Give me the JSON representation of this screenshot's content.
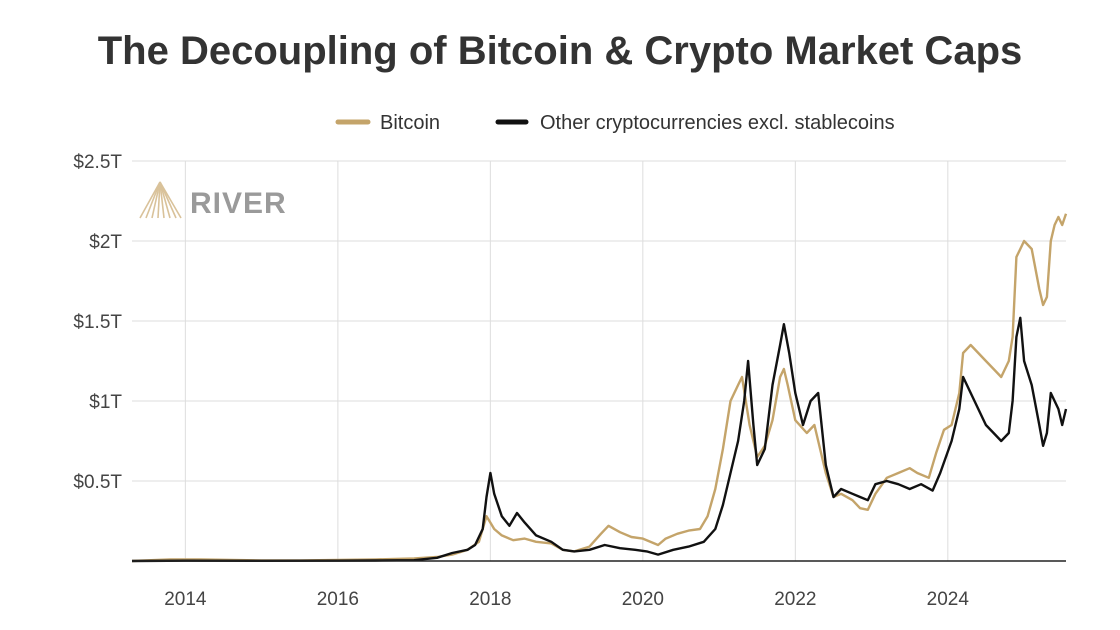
{
  "chart_data": {
    "type": "line",
    "title": "The Decoupling of Bitcoin & Crypto Market Caps",
    "xlabel": "",
    "ylabel": "",
    "xlim": [
      2013.3,
      2025.55
    ],
    "ylim": [
      0,
      2.5
    ],
    "x_ticks": [
      2014,
      2016,
      2018,
      2020,
      2022,
      2024
    ],
    "x_tick_labels": [
      "2014",
      "2016",
      "2018",
      "2020",
      "2022",
      "2024"
    ],
    "y_ticks": [
      0.5,
      1,
      1.5,
      2,
      2.5
    ],
    "y_tick_labels": [
      "$0.5T",
      "$1T",
      "$1.5T",
      "$2T",
      "$2.5T"
    ],
    "grid": true,
    "legend_position": "top",
    "watermark": "RIVER",
    "series": [
      {
        "name": "Bitcoin",
        "color": "#c4a46a",
        "points": [
          [
            2013.3,
            0.0
          ],
          [
            2013.8,
            0.01
          ],
          [
            2014.2,
            0.01
          ],
          [
            2014.6,
            0.007
          ],
          [
            2015.0,
            0.004
          ],
          [
            2015.5,
            0.003
          ],
          [
            2016.0,
            0.006
          ],
          [
            2016.5,
            0.01
          ],
          [
            2017.0,
            0.016
          ],
          [
            2017.3,
            0.025
          ],
          [
            2017.5,
            0.04
          ],
          [
            2017.7,
            0.07
          ],
          [
            2017.85,
            0.12
          ],
          [
            2017.95,
            0.28
          ],
          [
            2018.0,
            0.24
          ],
          [
            2018.05,
            0.2
          ],
          [
            2018.15,
            0.16
          ],
          [
            2018.3,
            0.13
          ],
          [
            2018.45,
            0.14
          ],
          [
            2018.6,
            0.12
          ],
          [
            2018.8,
            0.11
          ],
          [
            2018.95,
            0.07
          ],
          [
            2019.1,
            0.06
          ],
          [
            2019.3,
            0.09
          ],
          [
            2019.45,
            0.17
          ],
          [
            2019.55,
            0.22
          ],
          [
            2019.7,
            0.18
          ],
          [
            2019.85,
            0.15
          ],
          [
            2020.0,
            0.14
          ],
          [
            2020.2,
            0.1
          ],
          [
            2020.3,
            0.14
          ],
          [
            2020.45,
            0.17
          ],
          [
            2020.6,
            0.19
          ],
          [
            2020.75,
            0.2
          ],
          [
            2020.85,
            0.28
          ],
          [
            2020.95,
            0.45
          ],
          [
            2021.05,
            0.7
          ],
          [
            2021.15,
            1.0
          ],
          [
            2021.25,
            1.1
          ],
          [
            2021.3,
            1.15
          ],
          [
            2021.4,
            0.85
          ],
          [
            2021.5,
            0.65
          ],
          [
            2021.6,
            0.72
          ],
          [
            2021.7,
            0.88
          ],
          [
            2021.8,
            1.15
          ],
          [
            2021.85,
            1.2
          ],
          [
            2021.9,
            1.1
          ],
          [
            2022.0,
            0.88
          ],
          [
            2022.15,
            0.8
          ],
          [
            2022.25,
            0.85
          ],
          [
            2022.4,
            0.55
          ],
          [
            2022.5,
            0.4
          ],
          [
            2022.6,
            0.42
          ],
          [
            2022.75,
            0.38
          ],
          [
            2022.85,
            0.33
          ],
          [
            2022.95,
            0.32
          ],
          [
            2023.05,
            0.42
          ],
          [
            2023.2,
            0.52
          ],
          [
            2023.35,
            0.55
          ],
          [
            2023.5,
            0.58
          ],
          [
            2023.6,
            0.55
          ],
          [
            2023.75,
            0.52
          ],
          [
            2023.85,
            0.68
          ],
          [
            2023.95,
            0.82
          ],
          [
            2024.05,
            0.85
          ],
          [
            2024.15,
            1.05
          ],
          [
            2024.2,
            1.3
          ],
          [
            2024.3,
            1.35
          ],
          [
            2024.4,
            1.3
          ],
          [
            2024.5,
            1.25
          ],
          [
            2024.6,
            1.2
          ],
          [
            2024.7,
            1.15
          ],
          [
            2024.8,
            1.25
          ],
          [
            2024.85,
            1.4
          ],
          [
            2024.9,
            1.9
          ],
          [
            2024.95,
            1.95
          ],
          [
            2025.0,
            2.0
          ],
          [
            2025.1,
            1.95
          ],
          [
            2025.2,
            1.7
          ],
          [
            2025.25,
            1.6
          ],
          [
            2025.3,
            1.65
          ],
          [
            2025.35,
            2.0
          ],
          [
            2025.4,
            2.1
          ],
          [
            2025.45,
            2.15
          ],
          [
            2025.5,
            2.1
          ],
          [
            2025.55,
            2.17
          ]
        ]
      },
      {
        "name": "Other cryptocurrencies excl. stablecoins",
        "color": "#111111",
        "points": [
          [
            2013.3,
            0.0
          ],
          [
            2014.0,
            0.002
          ],
          [
            2015.0,
            0.001
          ],
          [
            2016.0,
            0.002
          ],
          [
            2016.5,
            0.003
          ],
          [
            2017.0,
            0.005
          ],
          [
            2017.3,
            0.02
          ],
          [
            2017.5,
            0.05
          ],
          [
            2017.7,
            0.07
          ],
          [
            2017.8,
            0.1
          ],
          [
            2017.9,
            0.2
          ],
          [
            2017.95,
            0.4
          ],
          [
            2018.0,
            0.55
          ],
          [
            2018.05,
            0.42
          ],
          [
            2018.15,
            0.28
          ],
          [
            2018.25,
            0.22
          ],
          [
            2018.35,
            0.3
          ],
          [
            2018.45,
            0.24
          ],
          [
            2018.6,
            0.16
          ],
          [
            2018.8,
            0.12
          ],
          [
            2018.95,
            0.07
          ],
          [
            2019.1,
            0.06
          ],
          [
            2019.3,
            0.07
          ],
          [
            2019.5,
            0.1
          ],
          [
            2019.7,
            0.08
          ],
          [
            2019.9,
            0.07
          ],
          [
            2020.05,
            0.06
          ],
          [
            2020.2,
            0.04
          ],
          [
            2020.4,
            0.07
          ],
          [
            2020.6,
            0.09
          ],
          [
            2020.8,
            0.12
          ],
          [
            2020.95,
            0.2
          ],
          [
            2021.05,
            0.35
          ],
          [
            2021.15,
            0.55
          ],
          [
            2021.25,
            0.75
          ],
          [
            2021.33,
            1.0
          ],
          [
            2021.38,
            1.25
          ],
          [
            2021.45,
            0.85
          ],
          [
            2021.5,
            0.6
          ],
          [
            2021.6,
            0.7
          ],
          [
            2021.7,
            1.1
          ],
          [
            2021.8,
            1.35
          ],
          [
            2021.85,
            1.48
          ],
          [
            2021.92,
            1.3
          ],
          [
            2022.0,
            1.05
          ],
          [
            2022.1,
            0.85
          ],
          [
            2022.2,
            1.0
          ],
          [
            2022.3,
            1.05
          ],
          [
            2022.4,
            0.6
          ],
          [
            2022.5,
            0.4
          ],
          [
            2022.6,
            0.45
          ],
          [
            2022.75,
            0.42
          ],
          [
            2022.85,
            0.4
          ],
          [
            2022.95,
            0.38
          ],
          [
            2023.05,
            0.48
          ],
          [
            2023.2,
            0.5
          ],
          [
            2023.35,
            0.48
          ],
          [
            2023.5,
            0.45
          ],
          [
            2023.65,
            0.48
          ],
          [
            2023.8,
            0.44
          ],
          [
            2023.9,
            0.55
          ],
          [
            2024.05,
            0.75
          ],
          [
            2024.15,
            0.95
          ],
          [
            2024.2,
            1.15
          ],
          [
            2024.3,
            1.05
          ],
          [
            2024.4,
            0.95
          ],
          [
            2024.5,
            0.85
          ],
          [
            2024.6,
            0.8
          ],
          [
            2024.7,
            0.75
          ],
          [
            2024.8,
            0.8
          ],
          [
            2024.85,
            1.0
          ],
          [
            2024.9,
            1.4
          ],
          [
            2024.95,
            1.52
          ],
          [
            2025.0,
            1.25
          ],
          [
            2025.1,
            1.1
          ],
          [
            2025.2,
            0.85
          ],
          [
            2025.25,
            0.72
          ],
          [
            2025.3,
            0.8
          ],
          [
            2025.35,
            1.05
          ],
          [
            2025.4,
            1.0
          ],
          [
            2025.45,
            0.95
          ],
          [
            2025.5,
            0.85
          ],
          [
            2025.55,
            0.95
          ]
        ]
      }
    ]
  }
}
